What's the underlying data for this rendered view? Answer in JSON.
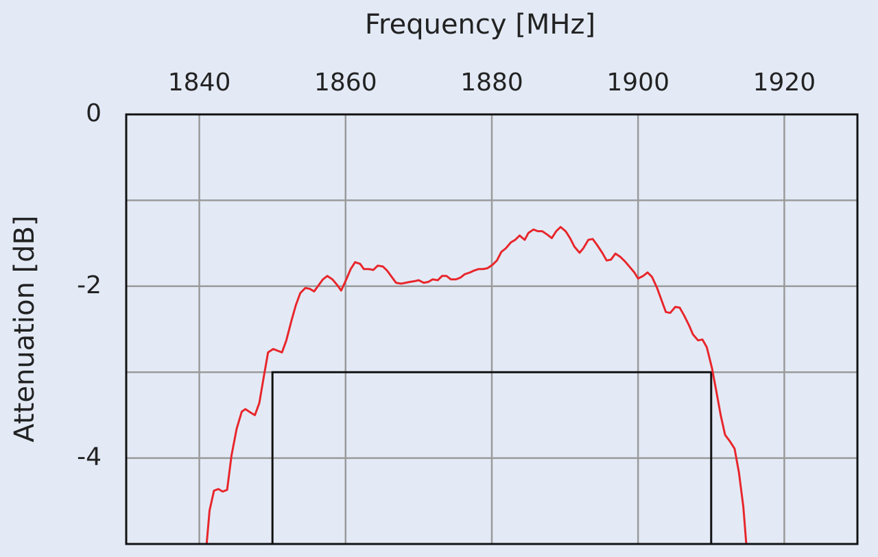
{
  "chart_data": {
    "type": "line",
    "x_label": "Frequency [MHz]",
    "y_label": "Attenuation [dB]",
    "xlim": [
      1830,
      1930
    ],
    "xticks": [
      1840,
      1860,
      1880,
      1900,
      1920
    ],
    "ylim": [
      -5,
      0
    ],
    "yticks": [
      0,
      -2,
      -4
    ],
    "y_minor_gridlines": [
      -1,
      -3
    ],
    "grid": true,
    "color": "#e8262b",
    "x": [
      1841.0,
      1841.4,
      1842.0,
      1842.6,
      1843.2,
      1843.8,
      1844.4,
      1845.1,
      1845.8,
      1846.3,
      1847.0,
      1847.6,
      1848.2,
      1848.8,
      1849.4,
      1850.1,
      1850.7,
      1851.3,
      1851.9,
      1852.6,
      1853.2,
      1853.8,
      1854.5,
      1855.1,
      1855.7,
      1856.3,
      1856.9,
      1857.5,
      1858.2,
      1858.8,
      1859.4,
      1860.1,
      1860.7,
      1861.3,
      1862.0,
      1862.5,
      1863.2,
      1863.8,
      1864.4,
      1865.1,
      1865.7,
      1866.3,
      1866.9,
      1867.6,
      1868.2,
      1868.8,
      1869.5,
      1870.0,
      1870.7,
      1871.3,
      1871.9,
      1872.6,
      1873.2,
      1873.8,
      1874.4,
      1875.1,
      1875.7,
      1876.3,
      1877.0,
      1877.5,
      1878.2,
      1878.8,
      1879.4,
      1880.1,
      1880.7,
      1881.3,
      1881.9,
      1882.6,
      1883.2,
      1883.8,
      1884.5,
      1885.0,
      1885.7,
      1886.3,
      1886.9,
      1887.6,
      1888.2,
      1888.8,
      1889.4,
      1890.1,
      1890.7,
      1891.3,
      1892.0,
      1892.5,
      1893.2,
      1893.8,
      1894.4,
      1895.1,
      1895.7,
      1896.3,
      1896.9,
      1897.6,
      1898.2,
      1898.8,
      1899.5,
      1900.0,
      1900.7,
      1901.3,
      1901.9,
      1902.6,
      1903.2,
      1903.8,
      1904.4,
      1905.1,
      1905.7,
      1906.3,
      1907.0,
      1907.5,
      1908.2,
      1908.8,
      1909.4,
      1910.1,
      1910.7,
      1911.3,
      1911.9,
      1912.6,
      1913.2,
      1913.8,
      1914.4,
      1914.8
    ],
    "values": [
      -5.0,
      -4.61,
      -4.38,
      -4.36,
      -4.39,
      -4.37,
      -3.97,
      -3.66,
      -3.46,
      -3.43,
      -3.47,
      -3.5,
      -3.36,
      -3.06,
      -2.77,
      -2.73,
      -2.75,
      -2.77,
      -2.63,
      -2.4,
      -2.22,
      -2.08,
      -2.02,
      -2.03,
      -2.06,
      -1.99,
      -1.92,
      -1.88,
      -1.92,
      -1.98,
      -2.05,
      -1.92,
      -1.8,
      -1.72,
      -1.74,
      -1.8,
      -1.8,
      -1.81,
      -1.76,
      -1.77,
      -1.82,
      -1.89,
      -1.96,
      -1.97,
      -1.96,
      -1.95,
      -1.94,
      -1.93,
      -1.96,
      -1.95,
      -1.92,
      -1.93,
      -1.88,
      -1.88,
      -1.92,
      -1.92,
      -1.9,
      -1.86,
      -1.84,
      -1.82,
      -1.8,
      -1.8,
      -1.79,
      -1.75,
      -1.7,
      -1.6,
      -1.56,
      -1.49,
      -1.46,
      -1.41,
      -1.46,
      -1.38,
      -1.34,
      -1.36,
      -1.36,
      -1.4,
      -1.44,
      -1.36,
      -1.31,
      -1.36,
      -1.44,
      -1.54,
      -1.61,
      -1.56,
      -1.46,
      -1.45,
      -1.52,
      -1.61,
      -1.7,
      -1.69,
      -1.62,
      -1.66,
      -1.71,
      -1.77,
      -1.84,
      -1.91,
      -1.88,
      -1.84,
      -1.89,
      -2.02,
      -2.16,
      -2.3,
      -2.31,
      -2.24,
      -2.25,
      -2.34,
      -2.46,
      -2.56,
      -2.63,
      -2.62,
      -2.71,
      -2.95,
      -3.22,
      -3.5,
      -3.73,
      -3.81,
      -3.89,
      -4.17,
      -4.57,
      -5.0
    ],
    "mask": {
      "color": "#111111",
      "x": [
        1850,
        1850,
        1910,
        1910
      ],
      "y": [
        -5,
        -3,
        -3,
        -5
      ]
    }
  }
}
